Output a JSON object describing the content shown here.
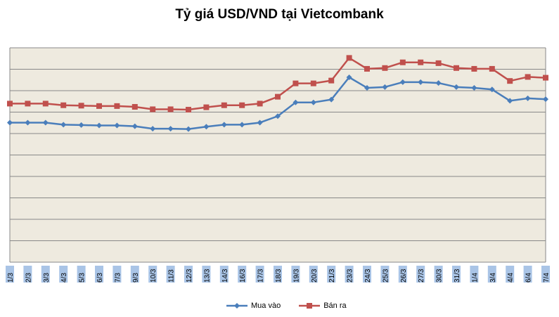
{
  "chart_data": {
    "type": "line",
    "title": "Tỷ giá USD/VND tại Vietcombank",
    "xlabel": "",
    "ylabel": "",
    "categories": [
      "1/3",
      "2/3",
      "3/3",
      "4/3",
      "5/3",
      "6/3",
      "7/3",
      "9/3",
      "10/3",
      "11/3",
      "12/3",
      "13/3",
      "14/3",
      "16/3",
      "17/3",
      "18/3",
      "19/3",
      "20/3",
      "21/3",
      "23/3",
      "24/3",
      "25/3",
      "26/3",
      "27/3",
      "30/3",
      "31/3",
      "1/4",
      "3/4",
      "4/4",
      "6/4",
      "7/4"
    ],
    "series": [
      {
        "name": "Mua vào",
        "color": "#4a7ebb",
        "marker": "diamond",
        "values": [
          34.5,
          34.5,
          34.5,
          34.0,
          33.9,
          33.8,
          33.8,
          33.6,
          33.0,
          33.0,
          32.9,
          33.5,
          34.0,
          34.0,
          34.5,
          36.1,
          39.5,
          39.5,
          40.2,
          45.7,
          43.1,
          43.3,
          44.5,
          44.5,
          44.3,
          43.3,
          43.1,
          42.7,
          39.9,
          40.5,
          40.3
        ],
        "data_labels": []
      },
      {
        "name": "Bán ra",
        "color": "#c0504d",
        "marker": "square",
        "values": [
          39.2,
          39.2,
          39.2,
          38.8,
          38.7,
          38.6,
          38.6,
          38.4,
          37.8,
          37.8,
          37.7,
          38.3,
          38.8,
          38.8,
          39.2,
          40.9,
          44.2,
          44.2,
          44.9,
          50.5,
          47.8,
          48.0,
          49.4,
          49.4,
          49.2,
          48.0,
          47.8,
          47.8,
          44.8,
          45.8,
          45.6
        ]
      }
    ],
    "ylim": [
      0,
      53
    ],
    "y_gridlines": [
      0,
      5.3,
      10.6,
      15.9,
      21.2,
      26.5,
      31.8,
      37.1,
      42.4,
      47.7,
      53
    ],
    "y_tick_labels_visible": false,
    "grid": true,
    "legend_position": "bottom",
    "plot_background": "#eeeadf",
    "category_label_background": "#a9c4e6"
  }
}
